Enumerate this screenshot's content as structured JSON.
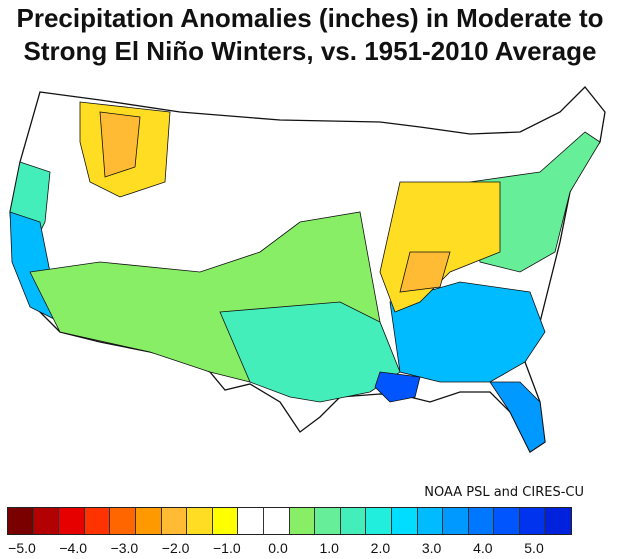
{
  "title": {
    "line1": "Precipitation Anomalies (inches) in Moderate to",
    "line2": "Strong El Niño Winters, vs. 1951-2010 Average"
  },
  "credit": "NOAA PSL and CIRES-CU",
  "legend": {
    "colors": [
      "#7a0000",
      "#b30000",
      "#e60000",
      "#ff3300",
      "#ff6600",
      "#ff9900",
      "#ffbb33",
      "#ffdd22",
      "#ffff00",
      "#ffffff",
      "#ffffff",
      "#88ee66",
      "#66ee99",
      "#44eebb",
      "#22eedd",
      "#00ddff",
      "#00bbff",
      "#0099ff",
      "#0077ff",
      "#0055ff",
      "#0033ee",
      "#0022dd"
    ],
    "ticks": [
      "−5.0",
      "−4.0",
      "−3.0",
      "−2.0",
      "−1.0",
      "0.0",
      "1.0",
      "2.0",
      "3.0",
      "4.0",
      "5.0"
    ]
  },
  "regions": [
    {
      "name": "pacific-northwest-coast",
      "level": "wet",
      "color": "#44eebb"
    },
    {
      "name": "california-coast",
      "level": "very-wet",
      "color": "#00bbff"
    },
    {
      "name": "northern-rockies",
      "level": "dry",
      "color": "#ffbb33"
    },
    {
      "name": "ohio-valley",
      "level": "dry",
      "color": "#ffdd22"
    },
    {
      "name": "southwest",
      "level": "wet",
      "color": "#66ee99"
    },
    {
      "name": "gulf-coast",
      "level": "very-wet",
      "color": "#0055ff"
    },
    {
      "name": "southeast",
      "level": "wet",
      "color": "#00bbff"
    },
    {
      "name": "florida",
      "level": "very-wet",
      "color": "#0099ff"
    }
  ]
}
